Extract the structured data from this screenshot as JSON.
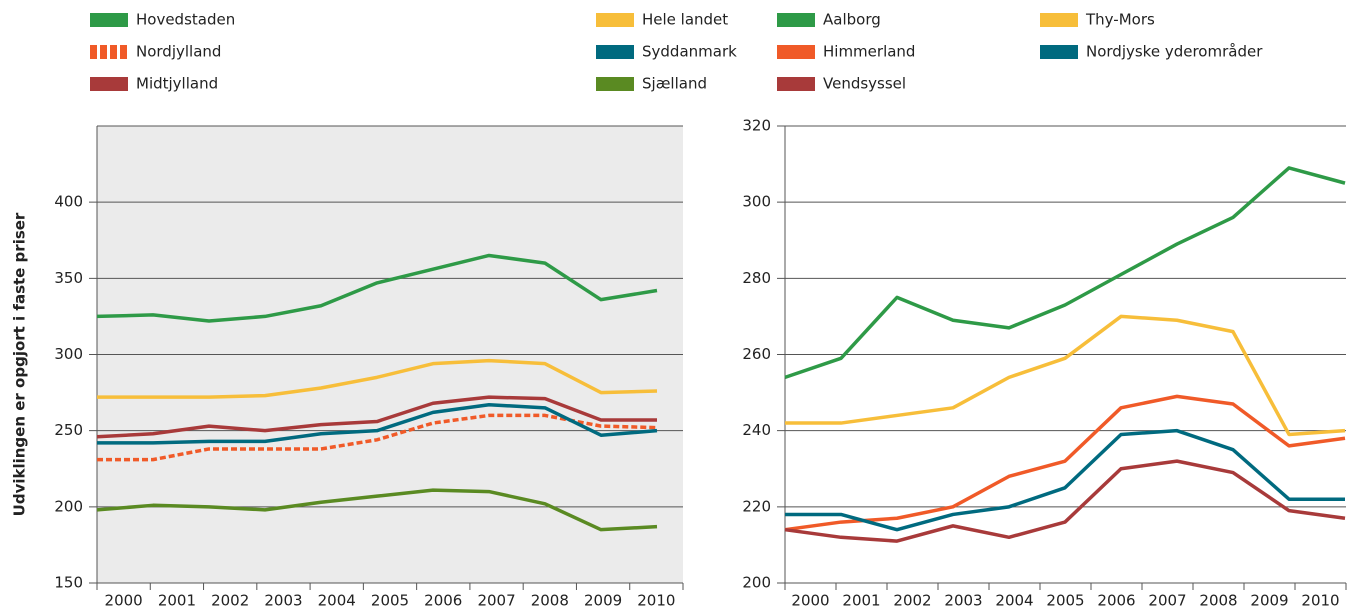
{
  "chart_data": [
    {
      "type": "line",
      "y_label": "Udviklingen er opgjort i faste priser",
      "categories": [
        "2000",
        "2001",
        "2002",
        "2003",
        "2004",
        "2005",
        "2006",
        "2007",
        "2008",
        "2009",
        "2010"
      ],
      "ylim": [
        150,
        450
      ],
      "yticks": [
        150,
        200,
        250,
        300,
        350,
        400
      ],
      "grid": true,
      "plot_background": "#ebebeb",
      "series": [
        {
          "name": "Hovedstaden",
          "color": "#2e9a47",
          "values": [
            325,
            326,
            322,
            325,
            332,
            347,
            356,
            365,
            360,
            336,
            342
          ]
        },
        {
          "name": "Hele landet",
          "color": "#f7be3a",
          "values": [
            272,
            272,
            272,
            273,
            278,
            285,
            294,
            296,
            294,
            275,
            276
          ]
        },
        {
          "name": "Nordjylland",
          "color": "#f05a28",
          "dashed": true,
          "values": [
            231,
            231,
            238,
            238,
            238,
            244,
            255,
            260,
            260,
            253,
            252
          ]
        },
        {
          "name": "Syddanmark",
          "color": "#006a7f",
          "values": [
            242,
            242,
            243,
            243,
            248,
            250,
            262,
            267,
            265,
            247,
            250
          ]
        },
        {
          "name": "Midtjylland",
          "color": "#a83a3a",
          "values": [
            246,
            248,
            253,
            250,
            254,
            256,
            268,
            272,
            271,
            257,
            257
          ]
        },
        {
          "name": "Sjælland",
          "color": "#5a8a22",
          "values": [
            198,
            201,
            200,
            198,
            203,
            207,
            211,
            210,
            202,
            185,
            187
          ]
        }
      ]
    },
    {
      "type": "line",
      "categories": [
        "2000",
        "2001",
        "2002",
        "2003",
        "2004",
        "2005",
        "2006",
        "2007",
        "2008",
        "2009",
        "2010"
      ],
      "ylim": [
        200,
        320
      ],
      "yticks": [
        200,
        220,
        240,
        260,
        280,
        300,
        320
      ],
      "grid": true,
      "plot_background": "#ffffff",
      "series": [
        {
          "name": "Aalborg",
          "color": "#2e9a47",
          "values": [
            254,
            259,
            275,
            269,
            267,
            273,
            281,
            289,
            296,
            309,
            305
          ]
        },
        {
          "name": "Thy-Mors",
          "color": "#f7be3a",
          "values": [
            242,
            242,
            244,
            246,
            254,
            259,
            270,
            269,
            266,
            239,
            240
          ]
        },
        {
          "name": "Himmerland",
          "color": "#f05a28",
          "values": [
            214,
            216,
            217,
            220,
            228,
            232,
            246,
            249,
            247,
            236,
            238
          ]
        },
        {
          "name": "Nordjyske yderområder",
          "color": "#006a7f",
          "values": [
            218,
            218,
            214,
            218,
            220,
            225,
            239,
            240,
            235,
            222,
            222
          ]
        },
        {
          "name": "Vendsyssel",
          "color": "#a83a3a",
          "values": [
            214,
            212,
            211,
            215,
            212,
            216,
            230,
            232,
            229,
            219,
            217
          ]
        }
      ]
    }
  ]
}
